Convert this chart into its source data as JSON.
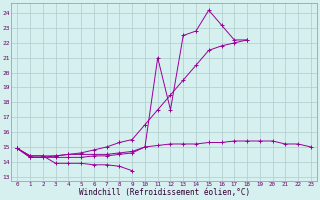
{
  "x": [
    0,
    1,
    2,
    3,
    4,
    5,
    6,
    7,
    8,
    9,
    10,
    11,
    12,
    13,
    14,
    15,
    16,
    17,
    18,
    19,
    20,
    21,
    22,
    23
  ],
  "line1": [
    14.9,
    14.4,
    14.4,
    14.4,
    14.5,
    14.5,
    14.5,
    14.5,
    14.6,
    14.7,
    15.0,
    15.1,
    15.2,
    15.2,
    15.2,
    15.3,
    15.3,
    15.4,
    15.4,
    15.4,
    15.4,
    15.2,
    15.2,
    15.0
  ],
  "line2": [
    14.9,
    14.4,
    14.4,
    13.9,
    13.9,
    13.9,
    13.8,
    13.8,
    13.7,
    13.4,
    null,
    null,
    null,
    null,
    null,
    null,
    null,
    null,
    null,
    null,
    null,
    null,
    null,
    null
  ],
  "line3": [
    14.9,
    14.3,
    14.3,
    14.3,
    14.3,
    14.3,
    14.4,
    14.4,
    14.5,
    14.6,
    15.0,
    21.0,
    17.5,
    22.5,
    22.8,
    24.2,
    23.2,
    22.2,
    22.2,
    null,
    null,
    null,
    null,
    null
  ],
  "line4": [
    14.9,
    14.3,
    14.3,
    14.4,
    14.5,
    14.6,
    14.8,
    15.0,
    15.3,
    15.5,
    16.5,
    17.5,
    18.5,
    19.5,
    20.5,
    21.5,
    21.8,
    22.0,
    22.2,
    null,
    null,
    null,
    null,
    null
  ],
  "bg_color": "#d6efef",
  "grid_color": "#b0cccc",
  "line_color": "#990099",
  "xlabel": "Windchill (Refroidissement éolien,°C)",
  "yticks": [
    13,
    14,
    15,
    16,
    17,
    18,
    19,
    20,
    21,
    22,
    23,
    24
  ],
  "ylim": [
    12.7,
    24.7
  ],
  "xlim": [
    -0.5,
    23.5
  ]
}
